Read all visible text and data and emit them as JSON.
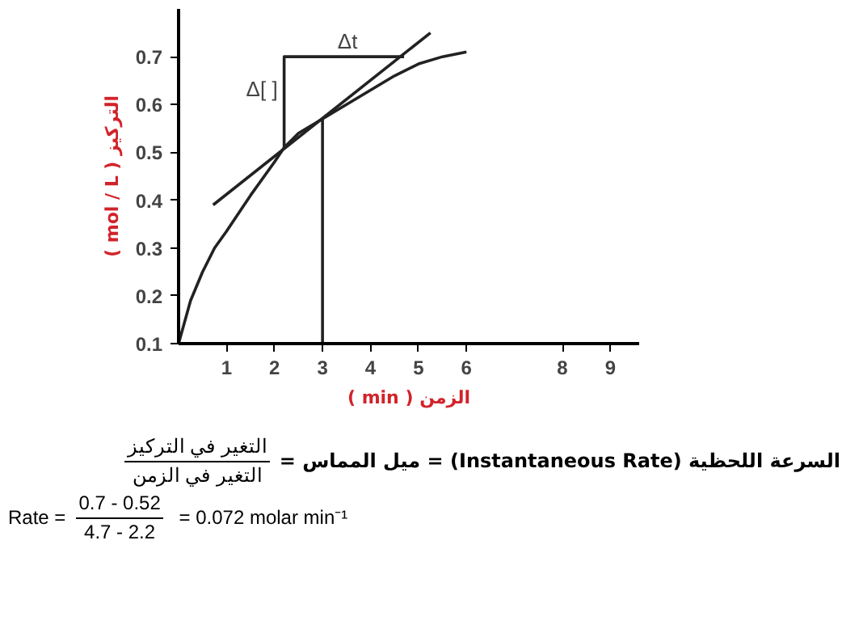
{
  "chart_data": {
    "type": "line",
    "xlabel": "( min ) الزمن",
    "ylabel": "( mol / L ) التركيز",
    "xlim": [
      0,
      9.6
    ],
    "ylim": [
      0.1,
      0.8
    ],
    "xticks": [
      1,
      2,
      3,
      4,
      5,
      6,
      8,
      9
    ],
    "yticks": [
      0.1,
      0.2,
      0.3,
      0.4,
      0.5,
      0.6,
      0.7
    ],
    "grid": false,
    "marker": "none",
    "line_style": "solid",
    "series": [
      {
        "color": "#222222",
        "x": [
          0,
          0.25,
          0.5,
          0.75,
          1,
          1.5,
          2,
          2.2,
          2.5,
          3,
          3.5,
          4,
          4.5,
          5,
          5.5,
          6
        ],
        "values": [
          0.1,
          0.19,
          0.25,
          0.3,
          0.335,
          0.41,
          0.48,
          0.51,
          0.54,
          0.57,
          0.6,
          0.63,
          0.66,
          0.685,
          0.7,
          0.71
        ]
      },
      {
        "color": "#222222",
        "x": [
          0.72,
          5.25
        ],
        "values": [
          0.39,
          0.75
        ]
      },
      {
        "color": "#222222",
        "x": [
          2.2,
          2.2,
          4.7
        ],
        "values": [
          0.51,
          0.7,
          0.7
        ]
      },
      {
        "color": "#222222",
        "x": [
          3,
          3
        ],
        "values": [
          0.1,
          0.57
        ]
      }
    ],
    "annotations": [
      {
        "text": "Δ[ ]",
        "x": 2.2,
        "y": 0.6
      },
      {
        "text": "Δt",
        "x": 3.45,
        "y": 0.7
      },
      "السرعة اللحظية (Instantaneous Rate) = ميل المماس =",
      "التغير في التركيز",
      "التغير في الزمن",
      "Rate =",
      "0.7 - 0.52",
      "4.7 - 2.2",
      "= 0.072 molar min⁻¹"
    ]
  }
}
